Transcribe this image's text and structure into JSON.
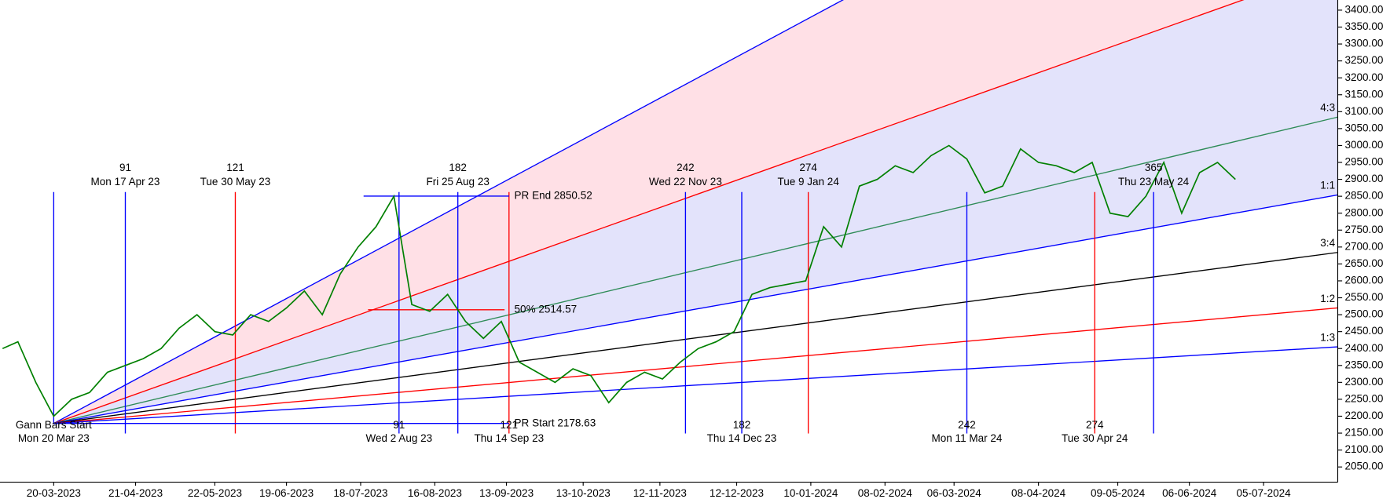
{
  "chart_data": {
    "type": "gann",
    "xlim": [
      "2023-02-27",
      "2024-08-03"
    ],
    "ylim": [
      2005,
      3430
    ],
    "xticks": [
      "20-03-2023",
      "21-04-2023",
      "22-05-2023",
      "19-06-2023",
      "18-07-2023",
      "16-08-2023",
      "13-09-2023",
      "13-10-2023",
      "12-11-2023",
      "12-12-2023",
      "10-01-2024",
      "08-02-2024",
      "06-03-2024",
      "08-04-2024",
      "09-05-2024",
      "06-06-2024",
      "05-07-2024"
    ],
    "yticks": [
      {
        "value": 3400,
        "label": "3400.00"
      },
      {
        "value": 3350,
        "label": "3350.00"
      },
      {
        "value": 3300,
        "label": "3300.00"
      },
      {
        "value": 3250,
        "label": "3250.00"
      },
      {
        "value": 3200,
        "label": "3200.00"
      },
      {
        "value": 3150,
        "label": "3150.00"
      },
      {
        "value": 3100,
        "label": "3100.00"
      },
      {
        "value": 3050,
        "label": "3050.00"
      },
      {
        "value": 3000,
        "label": "3000.00"
      },
      {
        "value": 2950,
        "label": "2950.00"
      },
      {
        "value": 2900,
        "label": "2900.00"
      },
      {
        "value": 2850,
        "label": "2850.00"
      },
      {
        "value": 2800,
        "label": "2800.00"
      },
      {
        "value": 2750,
        "label": "2750.00"
      },
      {
        "value": 2700,
        "label": "2700.00"
      },
      {
        "value": 2650,
        "label": "2650.00"
      },
      {
        "value": 2600,
        "label": "2600.00"
      },
      {
        "value": 2550,
        "label": "2550.00"
      },
      {
        "value": 2500,
        "label": "2500.00"
      },
      {
        "value": 2450,
        "label": "2450.00"
      },
      {
        "value": 2400,
        "label": "2400.00"
      },
      {
        "value": 2350,
        "label": "2350.00"
      },
      {
        "value": 2300,
        "label": "2300.00"
      },
      {
        "value": 2250,
        "label": "2250.00"
      },
      {
        "value": 2200,
        "label": "2200.00"
      },
      {
        "value": 2150,
        "label": "2150.00"
      },
      {
        "value": 2100,
        "label": "2100.00"
      },
      {
        "value": 2050,
        "label": "2050.00"
      }
    ],
    "price": {
      "color": "#008000",
      "dates": [
        "2023-02-28",
        "2023-03-06",
        "2023-03-13",
        "2023-03-20",
        "2023-03-27",
        "2023-04-03",
        "2023-04-10",
        "2023-04-17",
        "2023-04-24",
        "2023-05-01",
        "2023-05-08",
        "2023-05-15",
        "2023-05-22",
        "2023-05-29",
        "2023-06-05",
        "2023-06-12",
        "2023-06-19",
        "2023-06-26",
        "2023-07-03",
        "2023-07-10",
        "2023-07-17",
        "2023-07-24",
        "2023-07-31",
        "2023-08-07",
        "2023-08-14",
        "2023-08-21",
        "2023-08-28",
        "2023-09-04",
        "2023-09-11",
        "2023-09-18",
        "2023-09-25",
        "2023-10-02",
        "2023-10-09",
        "2023-10-16",
        "2023-10-23",
        "2023-10-30",
        "2023-11-06",
        "2023-11-13",
        "2023-11-20",
        "2023-11-27",
        "2023-12-04",
        "2023-12-11",
        "2023-12-18",
        "2023-12-25",
        "2024-01-01",
        "2024-01-08",
        "2024-01-15",
        "2024-01-22",
        "2024-01-29",
        "2024-02-05",
        "2024-02-12",
        "2024-02-19",
        "2024-02-26",
        "2024-03-04",
        "2024-03-11",
        "2024-03-18",
        "2024-03-25",
        "2024-04-01",
        "2024-04-08",
        "2024-04-15",
        "2024-04-22",
        "2024-04-29",
        "2024-05-06",
        "2024-05-13",
        "2024-05-20",
        "2024-05-27",
        "2024-06-03",
        "2024-06-10",
        "2024-06-17",
        "2024-06-24"
      ],
      "values": [
        2400,
        2420,
        2300,
        2200,
        2250,
        2270,
        2330,
        2350,
        2370,
        2400,
        2460,
        2500,
        2450,
        2440,
        2500,
        2480,
        2520,
        2570,
        2500,
        2620,
        2700,
        2760,
        2850,
        2530,
        2510,
        2560,
        2480,
        2430,
        2480,
        2360,
        2330,
        2300,
        2340,
        2320,
        2240,
        2300,
        2330,
        2310,
        2360,
        2400,
        2420,
        2450,
        2560,
        2580,
        2590,
        2600,
        2760,
        2700,
        2880,
        2900,
        2940,
        2920,
        2970,
        3000,
        2960,
        2860,
        2880,
        2990,
        2950,
        2940,
        2920,
        2950,
        2800,
        2790,
        2850,
        2950,
        2800,
        2920,
        2950,
        2900
      ]
    },
    "gann_start": {
      "label": "Gann Bars Start",
      "date": "Mon 20 Mar 23"
    },
    "fan": [
      {
        "label": null,
        "end": 4215,
        "color": "#0000ff"
      },
      {
        "label": null,
        "end": 3530,
        "color": "#ff0000"
      },
      {
        "label": "4:3",
        "end": 3084,
        "color": "#2e8b57"
      },
      {
        "label": "1:1",
        "end": 2854,
        "color": "#0000ff"
      },
      {
        "label": "3:4",
        "end": 2684,
        "color": "#000000"
      },
      {
        "label": "1:2",
        "end": 2520,
        "color": "#ff0000"
      },
      {
        "label": "1:3",
        "end": 2405,
        "color": "#0000ff"
      }
    ],
    "levels": [
      {
        "label": "PR End 2850.52",
        "value": 2850.52
      },
      {
        "label": "50% 2514.57",
        "value": 2514.57
      },
      {
        "label": "PR Start 2178.63",
        "value": 2178.63
      }
    ],
    "time_markers": [
      {
        "count": 91,
        "date": "Mon 17 Apr 23",
        "pos": "top",
        "color": "#0000ff"
      },
      {
        "count": 121,
        "date": "Tue 30 May 23",
        "pos": "top",
        "color": "#ff0000"
      },
      {
        "count": 91,
        "date": "Wed 2 Aug 23",
        "pos": "bottom",
        "color": "#0000ff"
      },
      {
        "count": 182,
        "date": "Fri 25 Aug 23",
        "pos": "top",
        "color": "#0000ff"
      },
      {
        "count": 121,
        "date": "Thu 14 Sep 23",
        "pos": "bottom",
        "color": "#ff0000"
      },
      {
        "count": 242,
        "date": "Wed 22 Nov 23",
        "pos": "top",
        "color": "#0000ff"
      },
      {
        "count": 182,
        "date": "Thu 14 Dec 23",
        "pos": "bottom",
        "color": "#0000ff"
      },
      {
        "count": 274,
        "date": "Tue 9 Jan 24",
        "pos": "top",
        "color": "#ff0000"
      },
      {
        "count": 242,
        "date": "Mon 11 Mar 24",
        "pos": "bottom",
        "color": "#0000ff"
      },
      {
        "count": 274,
        "date": "Tue 30 Apr 24",
        "pos": "bottom",
        "color": "#ff0000"
      },
      {
        "count": 365,
        "date": "Thu 23 May 24",
        "pos": "top",
        "color": "#0000ff"
      }
    ]
  }
}
